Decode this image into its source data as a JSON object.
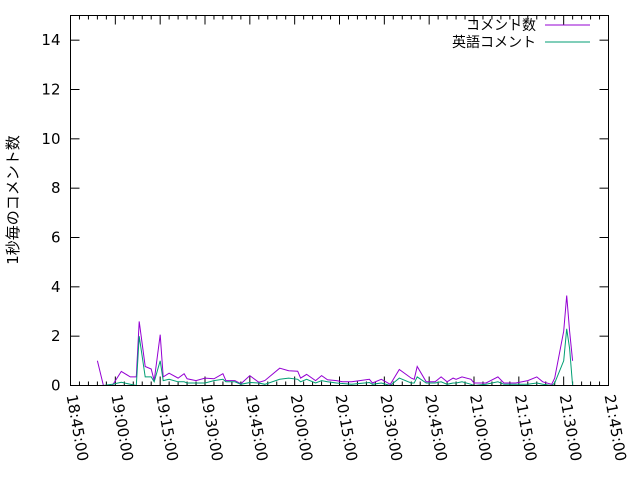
{
  "chart_data": {
    "type": "line",
    "title": "",
    "xlabel": "",
    "ylabel": "1秒毎のコメント数",
    "xlim": [
      "18:45:00",
      "21:45:00"
    ],
    "ylim": [
      0,
      15
    ],
    "xticks": [
      "18:45:00",
      "19:00:00",
      "19:15:00",
      "19:30:00",
      "19:45:00",
      "20:00:00",
      "20:15:00",
      "20:30:00",
      "20:45:00",
      "21:00:00",
      "21:15:00",
      "21:30:00",
      "21:45:00"
    ],
    "yticks": [
      0,
      2,
      4,
      6,
      8,
      10,
      12,
      14
    ],
    "grid": false,
    "legend_position": "top-right",
    "x": [
      "18:54",
      "18:56",
      "18:59",
      "19:02",
      "19:05",
      "19:07",
      "19:08",
      "19:10",
      "19:12",
      "19:13",
      "19:15",
      "19:16",
      "19:18",
      "19:21",
      "19:23",
      "19:24",
      "19:27",
      "19:30",
      "19:33",
      "19:36",
      "19:37",
      "19:40",
      "19:42",
      "19:45",
      "19:48",
      "19:50",
      "19:55",
      "19:58",
      "20:01",
      "20:02",
      "20:04",
      "20:07",
      "20:09",
      "20:11",
      "20:14",
      "20:16",
      "20:19",
      "20:25",
      "20:26",
      "20:29",
      "20:32",
      "20:35",
      "20:39",
      "20:40",
      "20:41",
      "20:44",
      "20:47",
      "20:49",
      "20:51",
      "20:53",
      "20:54",
      "20:56",
      "20:59",
      "21:00",
      "21:04",
      "21:08",
      "21:10",
      "21:14",
      "21:18",
      "21:21",
      "21:23",
      "21:26",
      "21:27",
      "21:30",
      "21:31",
      "21:32",
      "21:33"
    ],
    "series": [
      {
        "name": "コメント数",
        "color": "#9400d3",
        "values": [
          1.0,
          0,
          0,
          0.57,
          0.35,
          0.35,
          2.6,
          0.77,
          0.67,
          0.2,
          2.06,
          0.35,
          0.5,
          0.3,
          0.48,
          0.27,
          0.2,
          0.3,
          0.27,
          0.48,
          0.2,
          0.2,
          0.07,
          0.4,
          0.13,
          0.2,
          0.7,
          0.6,
          0.58,
          0.3,
          0.45,
          0.2,
          0.4,
          0.23,
          0.2,
          0.15,
          0.15,
          0.25,
          0.1,
          0.25,
          0.05,
          0.65,
          0.3,
          0.25,
          0.77,
          0.15,
          0.15,
          0.35,
          0.15,
          0.3,
          0.25,
          0.35,
          0.25,
          0.1,
          0.1,
          0.35,
          0.1,
          0.1,
          0.2,
          0.35,
          0.15,
          0.05,
          0.3,
          2.2,
          3.65,
          2.2,
          1.0
        ]
      },
      {
        "name": "英語コメント",
        "color": "#009e73",
        "values": [
          0,
          0,
          0.05,
          0.13,
          0.05,
          0,
          2.0,
          0.35,
          0.35,
          0.15,
          1.0,
          0.2,
          0.25,
          0.15,
          0.15,
          0.1,
          0.1,
          0.1,
          0.2,
          0.25,
          0.15,
          0.15,
          0.05,
          0.12,
          0.1,
          0.05,
          0.25,
          0.3,
          0.25,
          0.15,
          0.25,
          0.1,
          0.2,
          0.15,
          0.1,
          0.08,
          0.05,
          0.12,
          0.05,
          0.1,
          0,
          0.3,
          0.1,
          0.1,
          0.35,
          0.1,
          0.1,
          0.15,
          0.05,
          0.1,
          0.1,
          0.15,
          0.05,
          0,
          0.05,
          0.15,
          0.05,
          0.05,
          0.05,
          0.1,
          0.05,
          0,
          0.1,
          1.0,
          2.3,
          1.5,
          0
        ]
      }
    ]
  }
}
